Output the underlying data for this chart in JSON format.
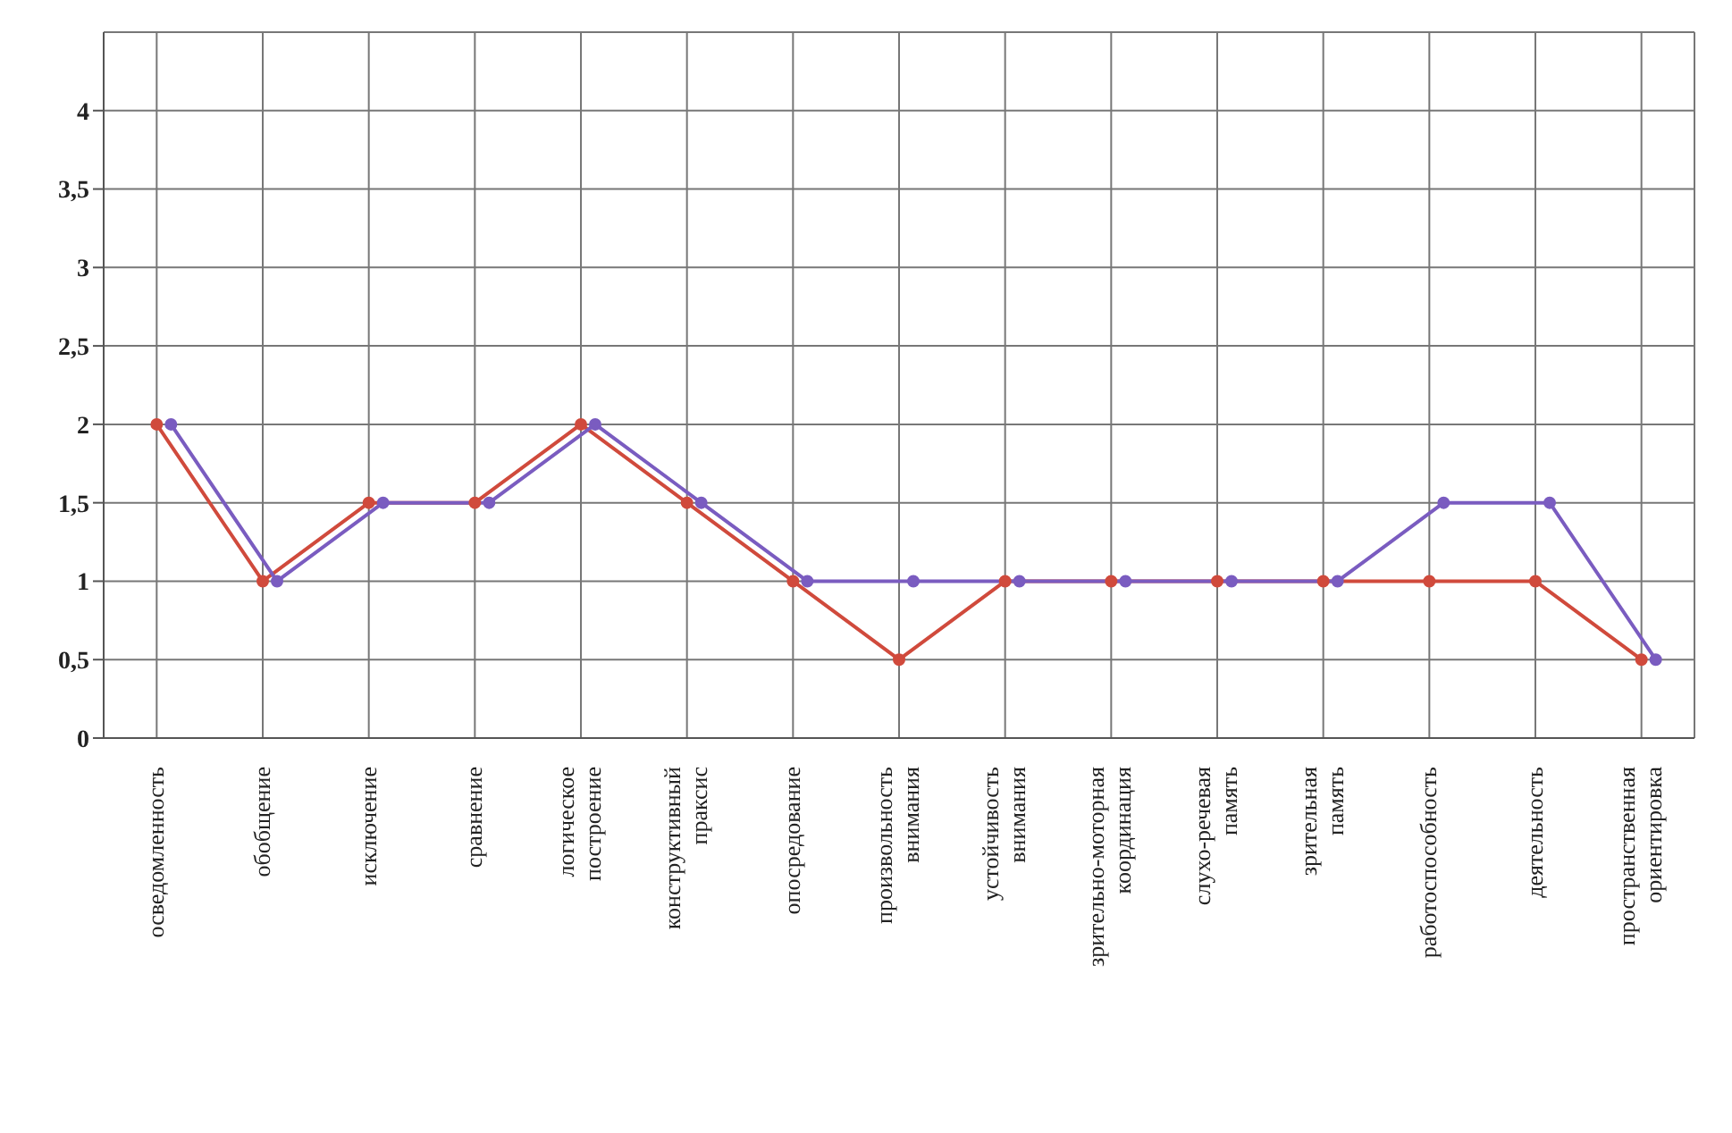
{
  "chart_data": {
    "type": "line",
    "categories": [
      "осведомленность",
      "обобщение",
      "исключение",
      "сравнение",
      "логическое построение",
      "конструктивный праксис",
      "опосредование",
      "произвольность внимания",
      "устойчивость внимания",
      "зрительно-моторная координация",
      "слухо-речевая память",
      "зрительная память",
      "работоспособность",
      "деятельность",
      "пространственная ориентировка"
    ],
    "series": [
      {
        "color": "#d04a3c",
        "values": [
          2,
          1,
          1.5,
          1.5,
          2,
          1.5,
          1,
          0.5,
          1,
          1,
          1,
          1,
          1,
          1,
          0.5
        ]
      },
      {
        "color": "#7a5cc0",
        "values": [
          2,
          1,
          1.5,
          1.5,
          2,
          1.5,
          1,
          1,
          1,
          1,
          1,
          1,
          1.5,
          1.5,
          0.5
        ]
      }
    ],
    "ylim": [
      0,
      4.5
    ],
    "yticks": [
      0,
      {
        "value": 0.5,
        "label": "0,5"
      },
      1,
      {
        "value": 1.5,
        "label": "1,5"
      },
      2,
      {
        "value": 2.5,
        "label": "2,5"
      },
      3,
      {
        "value": 3.5,
        "label": "3,5"
      },
      4
    ],
    "grid": true,
    "marker": "circle",
    "line_style": "solid"
  }
}
